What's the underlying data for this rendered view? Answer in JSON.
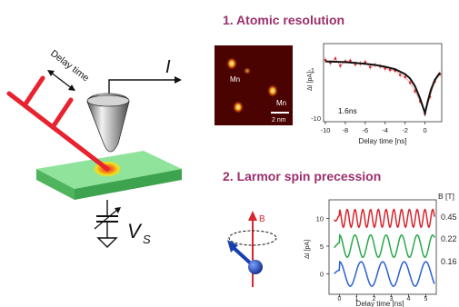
{
  "setup": {
    "delay_label": "Delay time",
    "current_label": "I",
    "voltage_label": "V",
    "voltage_sub": "S"
  },
  "section1": {
    "heading": "1. Atomic resolution",
    "image": {
      "atom_labels": [
        "Mn",
        "Mn"
      ],
      "scalebar_label": "2 nm"
    },
    "plot": {
      "ylabel": "ΔI [pA]",
      "xlabel": "Delay time [ns]",
      "annotation": "1.6ns",
      "yticks": [
        "-1",
        "-10"
      ],
      "xticks": [
        "-10",
        "-8",
        "-6",
        "-4",
        "-2",
        "0"
      ]
    }
  },
  "section2": {
    "heading": "2. Larmor spin precession",
    "field_label": "B",
    "plot": {
      "ylabel": "ΔI [pA]",
      "xlabel": "Delay time [ns]",
      "legend_title": "B [T]",
      "legend_values": [
        "0.45",
        "0.22",
        "0.16"
      ],
      "yticks": [
        "10",
        "5",
        "0"
      ],
      "xticks": [
        "0",
        "1",
        "2",
        "3",
        "4",
        "5"
      ]
    }
  },
  "colors": {
    "heading": "#9b2f6b",
    "laser": "#e8222e",
    "sample": "#7fd88a",
    "hotspot": "#f5e11a",
    "series_red": "#d8262e",
    "series_green": "#2aa84a",
    "series_blue": "#2a5fd6",
    "spin_blue": "#1a3fb0"
  },
  "chart_data": [
    {
      "type": "scatter",
      "title": "",
      "xlabel": "Delay time [ns]",
      "ylabel": "ΔI [pA]",
      "xlim": [
        -10,
        1.5
      ],
      "ylim": [
        -10,
        0
      ],
      "annotation": "1.6ns",
      "series": [
        {
          "style": "points",
          "x": [
            -10,
            -9.5,
            -9,
            -8.5,
            -8,
            -7.5,
            -7,
            -6.5,
            -6,
            -5.5,
            -5,
            -4.5,
            -4,
            -3.5,
            -3,
            -2.5,
            -2,
            -1.5,
            -1,
            -0.5,
            0,
            0.5,
            1,
            1.5
          ],
          "y": [
            -1.8,
            -2.2,
            -1.6,
            -2.6,
            -2.0,
            -1.9,
            -2.4,
            -2.3,
            -2.1,
            -2.8,
            -2.5,
            -2.7,
            -3.0,
            -3.2,
            -3.3,
            -3.9,
            -4.2,
            -5.0,
            -6.2,
            -7.6,
            -9.4,
            -7.0,
            -4.8,
            -3.8
          ]
        },
        {
          "style": "fit",
          "x": [
            -10,
            -9,
            -8,
            -7,
            -6,
            -5,
            -4,
            -3,
            -2,
            -1.5,
            -1,
            -0.5,
            0,
            0.3,
            0.6,
            1.0,
            1.5
          ],
          "y": [
            -2.0,
            -2.05,
            -2.1,
            -2.2,
            -2.35,
            -2.5,
            -2.75,
            -3.1,
            -3.8,
            -4.4,
            -5.5,
            -7.2,
            -9.3,
            -7.5,
            -6.0,
            -4.6,
            -3.6
          ]
        }
      ]
    },
    {
      "type": "line",
      "title": "",
      "xlabel": "Delay time [ns]",
      "ylabel": "ΔI [pA]",
      "xlim": [
        -0.5,
        5.5
      ],
      "ylim": [
        -3,
        13
      ],
      "legend_title": "B [T]",
      "series": [
        {
          "name": "0.45",
          "offset": 10,
          "amplitude": 1.6,
          "period": 0.45
        },
        {
          "name": "0.22",
          "offset": 5,
          "amplitude": 2.0,
          "period": 0.9
        },
        {
          "name": "0.16",
          "offset": 0,
          "amplitude": 2.2,
          "period": 1.25
        }
      ]
    }
  ]
}
